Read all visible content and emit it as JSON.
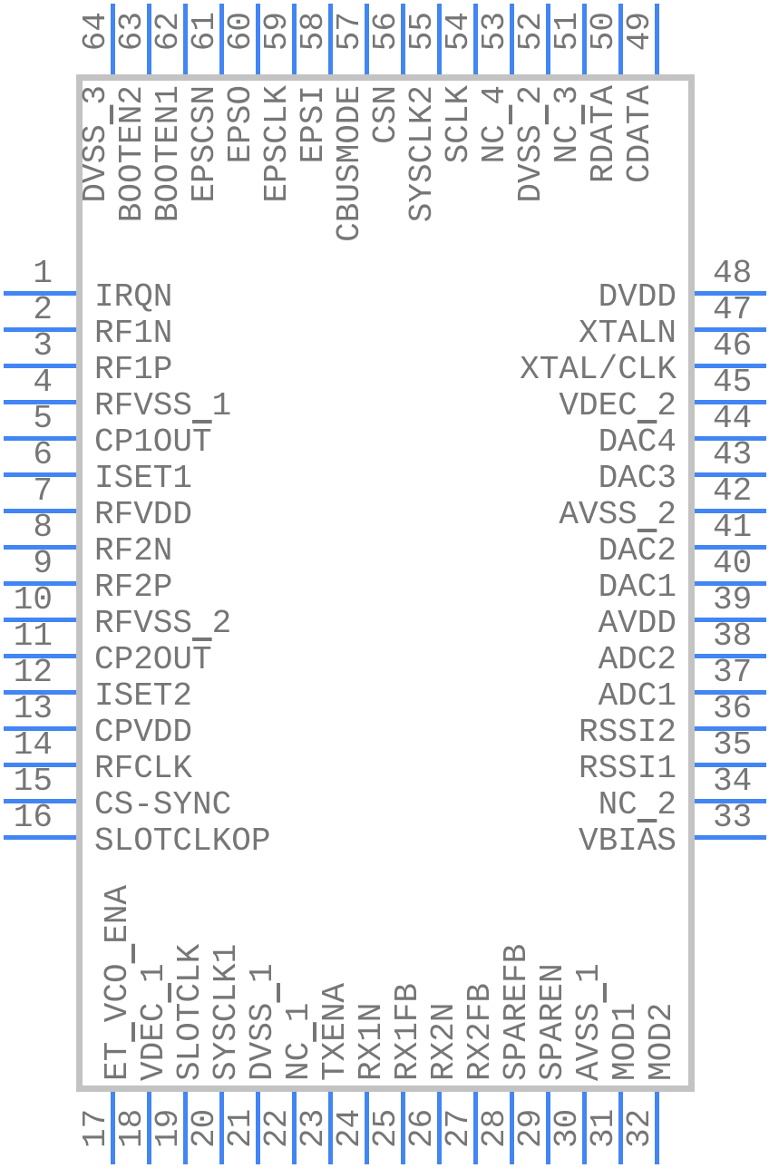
{
  "colors": {
    "pin_line": "#4285f4",
    "ic_border": "#c3c3c3",
    "text": "#767676",
    "bg": "#ffffff"
  },
  "ic": {
    "sides": {
      "top": [
        {
          "number": "64",
          "name": "DVSS_3"
        },
        {
          "number": "63",
          "name": "BOOTEN2",
          "bars": [
            5
          ]
        },
        {
          "number": "62",
          "name": "BOOTEN1"
        },
        {
          "number": "61",
          "name": "EPSCSN"
        },
        {
          "number": "60",
          "name": "EPSO"
        },
        {
          "number": "59",
          "name": "EPSCLK"
        },
        {
          "number": "58",
          "name": "EPSI"
        },
        {
          "number": "57",
          "name": "CBUSMODE"
        },
        {
          "number": "56",
          "name": "CSN"
        },
        {
          "number": "55",
          "name": "SYSCLK2"
        },
        {
          "number": "54",
          "name": "SCLK"
        },
        {
          "number": "53",
          "name": "NC_4"
        },
        {
          "number": "52",
          "name": "DVSS_2",
          "bars": [
            4
          ]
        },
        {
          "number": "51",
          "name": "NC_3",
          "bars": [
            2
          ]
        },
        {
          "number": "50",
          "name": "RDATA",
          "bars": [
            3
          ]
        },
        {
          "number": "49",
          "name": "CDATA"
        }
      ],
      "left": [
        {
          "number": "1",
          "name": "IRQN"
        },
        {
          "number": "2",
          "name": "RF1N"
        },
        {
          "number": "3",
          "name": "RF1P"
        },
        {
          "number": "4",
          "name": "RFVSS_1"
        },
        {
          "number": "5",
          "name": "CP1OUT",
          "bars": [
            5
          ]
        },
        {
          "number": "6",
          "name": "ISET1"
        },
        {
          "number": "7",
          "name": "RFVDD"
        },
        {
          "number": "8",
          "name": "RF2N"
        },
        {
          "number": "9",
          "name": "RF2P"
        },
        {
          "number": "10",
          "name": "RFVSS_2"
        },
        {
          "number": "11",
          "name": "CP2OUT",
          "bars": [
            5
          ]
        },
        {
          "number": "12",
          "name": "ISET2"
        },
        {
          "number": "13",
          "name": "CPVDD"
        },
        {
          "number": "14",
          "name": "RFCLK"
        },
        {
          "number": "15",
          "name": "CS-SYNC"
        },
        {
          "number": "16",
          "name": "SLOTCLKOP"
        }
      ],
      "right": [
        {
          "number": "48",
          "name": "DVDD"
        },
        {
          "number": "47",
          "name": "XTALN"
        },
        {
          "number": "46",
          "name": "XTAL/CLK"
        },
        {
          "number": "45",
          "name": "VDEC_2"
        },
        {
          "number": "44",
          "name": "DAC4",
          "bars": [
            2
          ]
        },
        {
          "number": "43",
          "name": "DAC3"
        },
        {
          "number": "42",
          "name": "AVSS_2"
        },
        {
          "number": "41",
          "name": "DAC2",
          "bars": [
            2
          ]
        },
        {
          "number": "40",
          "name": "DAC1"
        },
        {
          "number": "39",
          "name": "AVDD"
        },
        {
          "number": "38",
          "name": "ADC2"
        },
        {
          "number": "37",
          "name": "ADC1"
        },
        {
          "number": "36",
          "name": "RSSI2"
        },
        {
          "number": "35",
          "name": "RSSI1"
        },
        {
          "number": "34",
          "name": "NC_2"
        },
        {
          "number": "33",
          "name": "VBIAS",
          "bars": [
            3
          ]
        }
      ],
      "bottom": [
        {
          "number": "17",
          "name": "ET_VCO_ENA"
        },
        {
          "number": "18",
          "name": "VDEC_1",
          "bars": [
            2,
            6
          ]
        },
        {
          "number": "19",
          "name": "SLOTCLK",
          "bars": [
            4
          ]
        },
        {
          "number": "20",
          "name": "SYSCLK1"
        },
        {
          "number": "21",
          "name": "DVSS_1"
        },
        {
          "number": "22",
          "name": "NC_1",
          "bars": [
            4
          ]
        },
        {
          "number": "23",
          "name": "TXENA",
          "bars": [
            2
          ]
        },
        {
          "number": "24",
          "name": "RX1N"
        },
        {
          "number": "25",
          "name": "RX1FB"
        },
        {
          "number": "26",
          "name": "RX2N"
        },
        {
          "number": "27",
          "name": "RX2FB"
        },
        {
          "number": "28",
          "name": "SPAREFB"
        },
        {
          "number": "29",
          "name": "SPAREN"
        },
        {
          "number": "30",
          "name": "AVSS_1"
        },
        {
          "number": "31",
          "name": "MOD1",
          "bars": [
            4
          ]
        },
        {
          "number": "32",
          "name": "MOD2"
        }
      ]
    }
  }
}
